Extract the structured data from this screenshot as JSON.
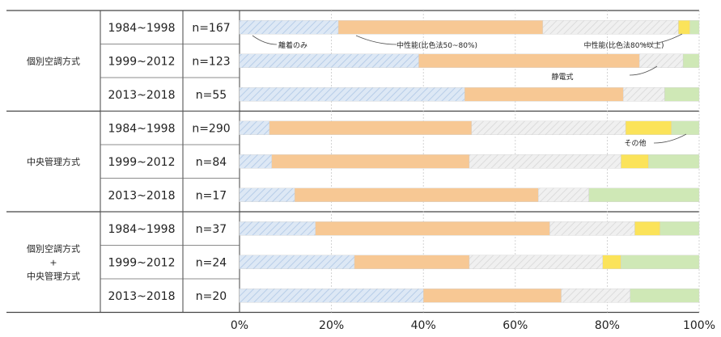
{
  "chart_data": {
    "type": "bar",
    "orientation": "horizontal",
    "stacked": "100%",
    "xlim": [
      0,
      100
    ],
    "x_ticks": [
      "0%",
      "20%",
      "40%",
      "60%",
      "80%",
      "100%"
    ],
    "grid": true,
    "groups": [
      {
        "name_lines": [
          "個別空調方式"
        ],
        "rows": [
          0,
          1,
          2
        ]
      },
      {
        "name_lines": [
          "中央管理方式"
        ],
        "rows": [
          3,
          4,
          5
        ]
      },
      {
        "name_lines": [
          "個別空調方式",
          "+",
          "中央管理方式"
        ],
        "rows": [
          6,
          7,
          8
        ]
      }
    ],
    "rows": [
      {
        "period": "1984~1998",
        "n": "n=167",
        "values": [
          21.5,
          44.5,
          29.5,
          2.5,
          2.0
        ]
      },
      {
        "period": "1999~2012",
        "n": "n=123",
        "values": [
          39.0,
          48.0,
          9.5,
          0.0,
          3.5
        ]
      },
      {
        "period": "2013~2018",
        "n": "n=55",
        "values": [
          49.0,
          34.5,
          9.0,
          0.0,
          7.5
        ]
      },
      {
        "period": "1984~1998",
        "n": "n=290",
        "values": [
          6.5,
          44.0,
          33.5,
          10.0,
          6.0
        ]
      },
      {
        "period": "1999~2012",
        "n": "n=84",
        "values": [
          7.0,
          43.0,
          33.0,
          6.0,
          11.0
        ]
      },
      {
        "period": "2013~2018",
        "n": "n=17",
        "values": [
          12.0,
          53.0,
          11.0,
          0.0,
          24.0
        ]
      },
      {
        "period": "1984~1998",
        "n": "n=37",
        "values": [
          16.5,
          51.0,
          18.5,
          5.5,
          8.5
        ]
      },
      {
        "period": "1999~2012",
        "n": "n=24",
        "values": [
          25.0,
          25.0,
          29.0,
          4.0,
          17.0
        ]
      },
      {
        "period": "2013~2018",
        "n": "n=20",
        "values": [
          40.0,
          30.0,
          15.0,
          0.0,
          15.0
        ]
      }
    ],
    "series": [
      {
        "name": "離着のみ",
        "color": "#dbe7f5",
        "pattern": "diag-blue"
      },
      {
        "name": "中性能(比色法50~80%)",
        "color": "#f7c894",
        "pattern": ""
      },
      {
        "name": "中性能(比色法80%以上)",
        "color": "#eeeeee",
        "pattern": "diag-gray"
      },
      {
        "name": "静電式",
        "color": "#fbe35a",
        "pattern": ""
      },
      {
        "name": "その他",
        "color": "#cfe8b6",
        "pattern": ""
      }
    ],
    "annotations": [
      {
        "series": 0,
        "text": "離着のみ"
      },
      {
        "series": 1,
        "text": "中性能(比色法50~80%)"
      },
      {
        "series": 2,
        "text": "中性能(比色法80%以上)"
      },
      {
        "series": 3,
        "text": "静電式"
      },
      {
        "series": 4,
        "text": "その他"
      }
    ]
  }
}
